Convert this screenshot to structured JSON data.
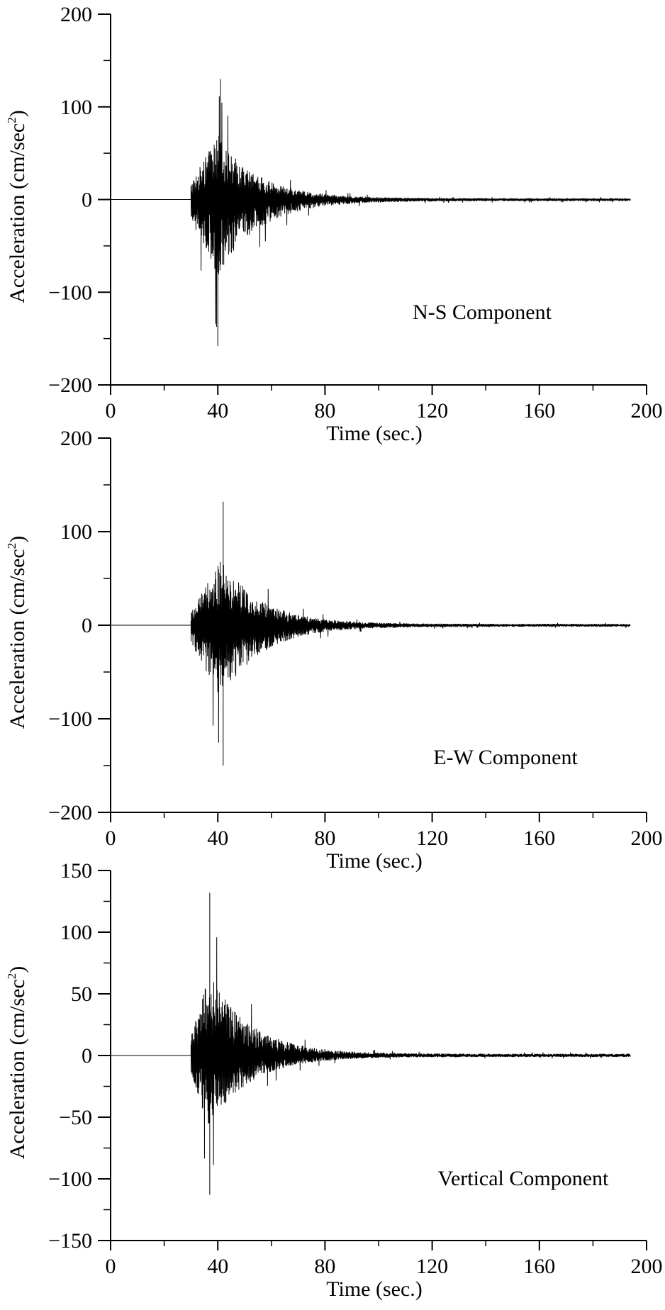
{
  "chart_data": [
    {
      "type": "line",
      "title": "",
      "annotation": "N-S Component",
      "xlabel": "Time (sec.)",
      "ylabel": "Acceleration (cm/sec",
      "ylabel_superscript": "2",
      "ylabel_close": ")",
      "xlim": [
        0,
        200
      ],
      "ylim": [
        -200,
        200
      ],
      "xticks": [
        "0",
        "40",
        "80",
        "120",
        "160",
        "200"
      ],
      "yticks": [
        "200",
        "100",
        "0",
        "−100",
        "−200"
      ],
      "grid": false,
      "line_color": "#000000",
      "record": {
        "onset_sec": 30,
        "end_sec": 194,
        "peak_positive": 130,
        "peak_positive_time": 41,
        "peak_negative": -158,
        "peak_negative_time": 40
      }
    },
    {
      "type": "line",
      "title": "",
      "annotation": "E-W Component",
      "xlabel": "Time (sec.)",
      "ylabel": "Acceleration (cm/sec",
      "ylabel_superscript": "2",
      "ylabel_close": ")",
      "xlim": [
        0,
        200
      ],
      "ylim": [
        -200,
        200
      ],
      "xticks": [
        "0",
        "40",
        "80",
        "120",
        "160",
        "200"
      ],
      "yticks": [
        "200",
        "100",
        "0",
        "−100",
        "−200"
      ],
      "grid": false,
      "line_color": "#000000",
      "record": {
        "onset_sec": 30,
        "end_sec": 194,
        "peak_positive": 132,
        "peak_positive_time": 42,
        "peak_negative": -150,
        "peak_negative_time": 42
      }
    },
    {
      "type": "line",
      "title": "",
      "annotation": "Vertical Component",
      "xlabel": "Time (sec.)",
      "ylabel": "Acceleration (cm/sec",
      "ylabel_superscript": "2",
      "ylabel_close": ")",
      "xlim": [
        0,
        200
      ],
      "ylim": [
        -150,
        150
      ],
      "xticks": [
        "0",
        "40",
        "80",
        "120",
        "160",
        "200"
      ],
      "yticks": [
        "150",
        "100",
        "50",
        "0",
        "−50",
        "−100",
        "−150"
      ],
      "grid": false,
      "line_color": "#000000",
      "record": {
        "onset_sec": 30,
        "end_sec": 194,
        "peak_positive": 132,
        "peak_positive_time": 37,
        "peak_negative": -113,
        "peak_negative_time": 37
      }
    }
  ]
}
